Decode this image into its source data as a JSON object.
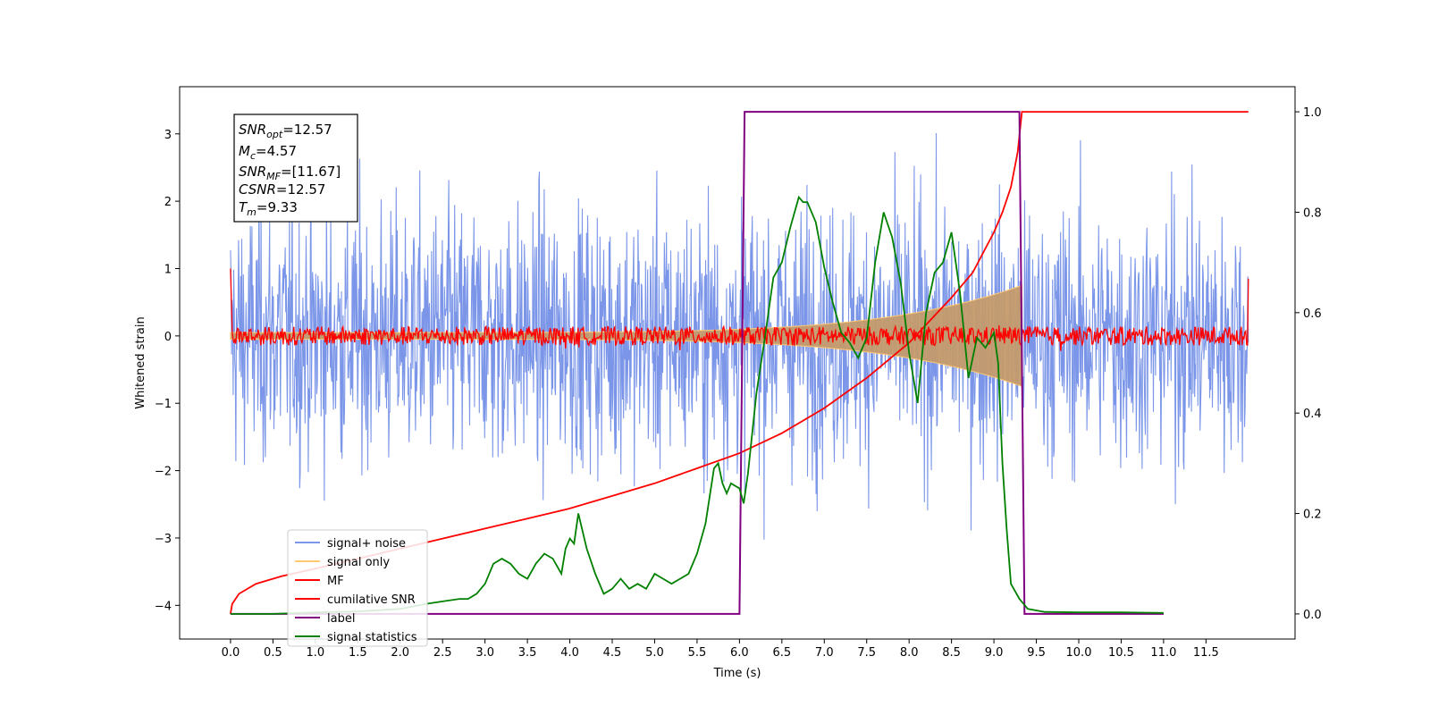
{
  "chart_data": {
    "type": "line",
    "xlabel": "Time (s)",
    "ylabel": "Whitened strain",
    "xlim": [
      -0.6,
      12.55
    ],
    "ylim": [
      -4.5,
      3.7
    ],
    "ylim_right": [
      -0.05,
      1.05
    ],
    "x_ticks": [
      "0.0",
      "0.5",
      "1.0",
      "1.5",
      "2.0",
      "2.5",
      "3.0",
      "3.5",
      "4.0",
      "4.5",
      "5.0",
      "5.5",
      "6.0",
      "6.5",
      "7.0",
      "7.5",
      "8.0",
      "8.5",
      "9.0",
      "9.5",
      "10.0",
      "10.5",
      "11.0",
      "11.5"
    ],
    "y_ticks": [
      "3",
      "2",
      "1",
      "0",
      "−1",
      "−2",
      "−3",
      "−4"
    ],
    "y_ticks_right": [
      "1.0",
      "0.8",
      "0.6",
      "0.4",
      "0.2",
      "0.0"
    ],
    "annotation": {
      "snr_opt": "12.57",
      "mc": "4.57",
      "snr_mf": "[11.67]",
      "csnr": "12.57",
      "tm": "9.33"
    },
    "legend": {
      "placement": "lower-left",
      "entries": [
        "signal+ noise",
        "signal only",
        "MF",
        "cumilative SNR",
        "label",
        "signal statistics"
      ]
    },
    "series": [
      {
        "name": "signal+ noise",
        "color": "#7b96e8",
        "axis": "left",
        "description_values": {
          "t_start": 0.0,
          "t_end": 12.0,
          "amplitude_rms": 1.0
        }
      },
      {
        "name": "signal only",
        "color": "#ffc874",
        "axis": "left",
        "envelope": {
          "t_start": 0.0,
          "t_end": 9.33,
          "amp_start": 0.05,
          "amp_end": 0.75
        }
      },
      {
        "name": "MF",
        "color": "#ff0000",
        "axis": "left",
        "description_values": {
          "t_start": 0.0,
          "t_end": 12.0,
          "amplitude": 0.1
        }
      },
      {
        "name": "cumilative SNR",
        "color": "#ff0000",
        "axis": "right",
        "x": [
          0.0,
          0.02,
          0.1,
          0.3,
          0.6,
          1.0,
          1.5,
          2.0,
          2.5,
          3.0,
          3.5,
          4.0,
          4.5,
          5.0,
          5.5,
          6.0,
          6.5,
          7.0,
          7.5,
          8.0,
          8.5,
          8.75,
          9.0,
          9.1,
          9.2,
          9.28,
          9.33,
          12.0
        ],
        "y": [
          0.0,
          0.02,
          0.04,
          0.06,
          0.075,
          0.09,
          0.11,
          0.13,
          0.15,
          0.17,
          0.19,
          0.21,
          0.235,
          0.26,
          0.29,
          0.32,
          0.36,
          0.41,
          0.47,
          0.54,
          0.63,
          0.68,
          0.76,
          0.8,
          0.85,
          0.92,
          1.0,
          1.0
        ]
      },
      {
        "name": "label",
        "color": "#800080",
        "axis": "right",
        "x": [
          0.0,
          6.0,
          6.06,
          9.3,
          9.36,
          11.0
        ],
        "y": [
          0.0,
          0.0,
          1.0,
          1.0,
          0.0,
          0.0
        ]
      },
      {
        "name": "signal statistics",
        "color": "#008000",
        "axis": "right",
        "x": [
          0.0,
          0.5,
          1.0,
          1.5,
          2.0,
          2.3,
          2.5,
          2.7,
          2.8,
          2.9,
          3.0,
          3.1,
          3.2,
          3.3,
          3.4,
          3.5,
          3.6,
          3.7,
          3.8,
          3.9,
          3.95,
          4.0,
          4.05,
          4.1,
          4.2,
          4.3,
          4.4,
          4.5,
          4.6,
          4.7,
          4.8,
          4.9,
          5.0,
          5.1,
          5.2,
          5.3,
          5.4,
          5.5,
          5.6,
          5.7,
          5.75,
          5.8,
          5.85,
          5.9,
          6.0,
          6.05,
          6.1,
          6.2,
          6.3,
          6.4,
          6.5,
          6.6,
          6.7,
          6.75,
          6.8,
          6.9,
          7.0,
          7.1,
          7.2,
          7.3,
          7.4,
          7.5,
          7.6,
          7.7,
          7.8,
          7.9,
          8.0,
          8.1,
          8.2,
          8.3,
          8.4,
          8.5,
          8.6,
          8.7,
          8.8,
          8.9,
          9.0,
          9.05,
          9.1,
          9.15,
          9.2,
          9.3,
          9.4,
          9.6,
          10.0,
          10.5,
          11.0
        ],
        "y": [
          0.0,
          0.0,
          0.003,
          0.005,
          0.01,
          0.02,
          0.025,
          0.03,
          0.03,
          0.04,
          0.06,
          0.1,
          0.11,
          0.1,
          0.08,
          0.07,
          0.1,
          0.12,
          0.11,
          0.08,
          0.13,
          0.15,
          0.14,
          0.2,
          0.13,
          0.08,
          0.04,
          0.05,
          0.07,
          0.05,
          0.06,
          0.05,
          0.08,
          0.07,
          0.06,
          0.07,
          0.08,
          0.12,
          0.18,
          0.29,
          0.3,
          0.26,
          0.24,
          0.26,
          0.25,
          0.22,
          0.28,
          0.44,
          0.55,
          0.67,
          0.7,
          0.77,
          0.83,
          0.82,
          0.82,
          0.78,
          0.69,
          0.62,
          0.56,
          0.54,
          0.51,
          0.55,
          0.7,
          0.8,
          0.75,
          0.66,
          0.52,
          0.42,
          0.6,
          0.68,
          0.7,
          0.76,
          0.64,
          0.47,
          0.55,
          0.53,
          0.56,
          0.5,
          0.3,
          0.17,
          0.06,
          0.03,
          0.01,
          0.004,
          0.003,
          0.003,
          0.002
        ]
      }
    ]
  }
}
